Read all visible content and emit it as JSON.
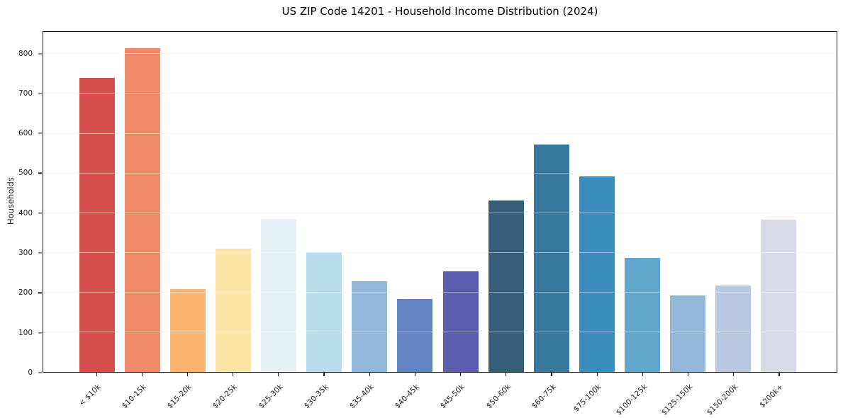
{
  "chart_data": {
    "type": "bar",
    "title": "US ZIP Code 14201 - Household Income Distribution (2024)",
    "xlabel": "",
    "ylabel": "Households",
    "categories": [
      "< $10k",
      "$10-15k",
      "$15-20k",
      "$20-25k",
      "$25-30k",
      "$30-35k",
      "$35-40k",
      "$40-45k",
      "$45-50k",
      "$50-60k",
      "$60-75k",
      "$75-100k",
      "$100-125k",
      "$125-150k",
      "$150-200k",
      "$200k+"
    ],
    "values": [
      740,
      815,
      208,
      310,
      385,
      302,
      229,
      184,
      254,
      432,
      572,
      493,
      287,
      193,
      218,
      384
    ],
    "bar_colors": [
      "#d5504d",
      "#f18a68",
      "#f9b46d",
      "#fbe3a4",
      "#e4f1f7",
      "#b9dcea",
      "#90b8db",
      "#6185c2",
      "#5a5dab",
      "#345e77",
      "#38789d",
      "#3a8cbd",
      "#60a7cb",
      "#93b8da",
      "#b9c8e0",
      "#d9dae8"
    ],
    "yticks": [
      0,
      100,
      200,
      300,
      400,
      500,
      600,
      700,
      800
    ],
    "ylim": [
      0,
      856
    ],
    "grid": "horizontal",
    "grid_color": "#e8e8f0",
    "spine_color": "#1a1a1a",
    "background_color": "#ffffff",
    "legend": "none"
  }
}
